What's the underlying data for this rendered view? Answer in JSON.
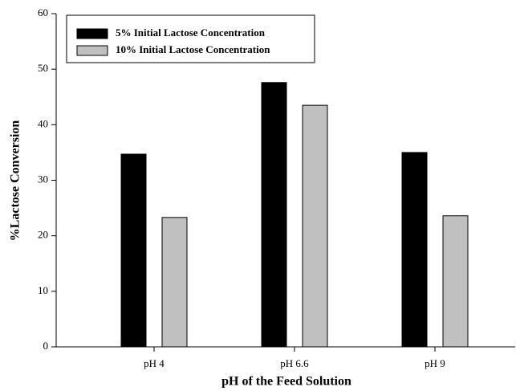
{
  "chart_data": {
    "type": "bar",
    "x_label": "pH of the Feed Solution",
    "y_label": "%Lactose Conversion",
    "categories": [
      "pH 4",
      "pH 6.6",
      "pH 9"
    ],
    "series": [
      {
        "name": "5% Initial Lactose Concentration",
        "color": "#000000",
        "values": [
          34.7,
          47.6,
          35.0
        ]
      },
      {
        "name": "10% Initial Lactose Concentration",
        "color": "#c0c0c0",
        "values": [
          23.3,
          43.5,
          23.6
        ]
      }
    ],
    "ylim": [
      0,
      60
    ],
    "yticks": [
      0,
      10,
      20,
      30,
      40,
      50,
      60
    ],
    "legend": "upper left"
  }
}
